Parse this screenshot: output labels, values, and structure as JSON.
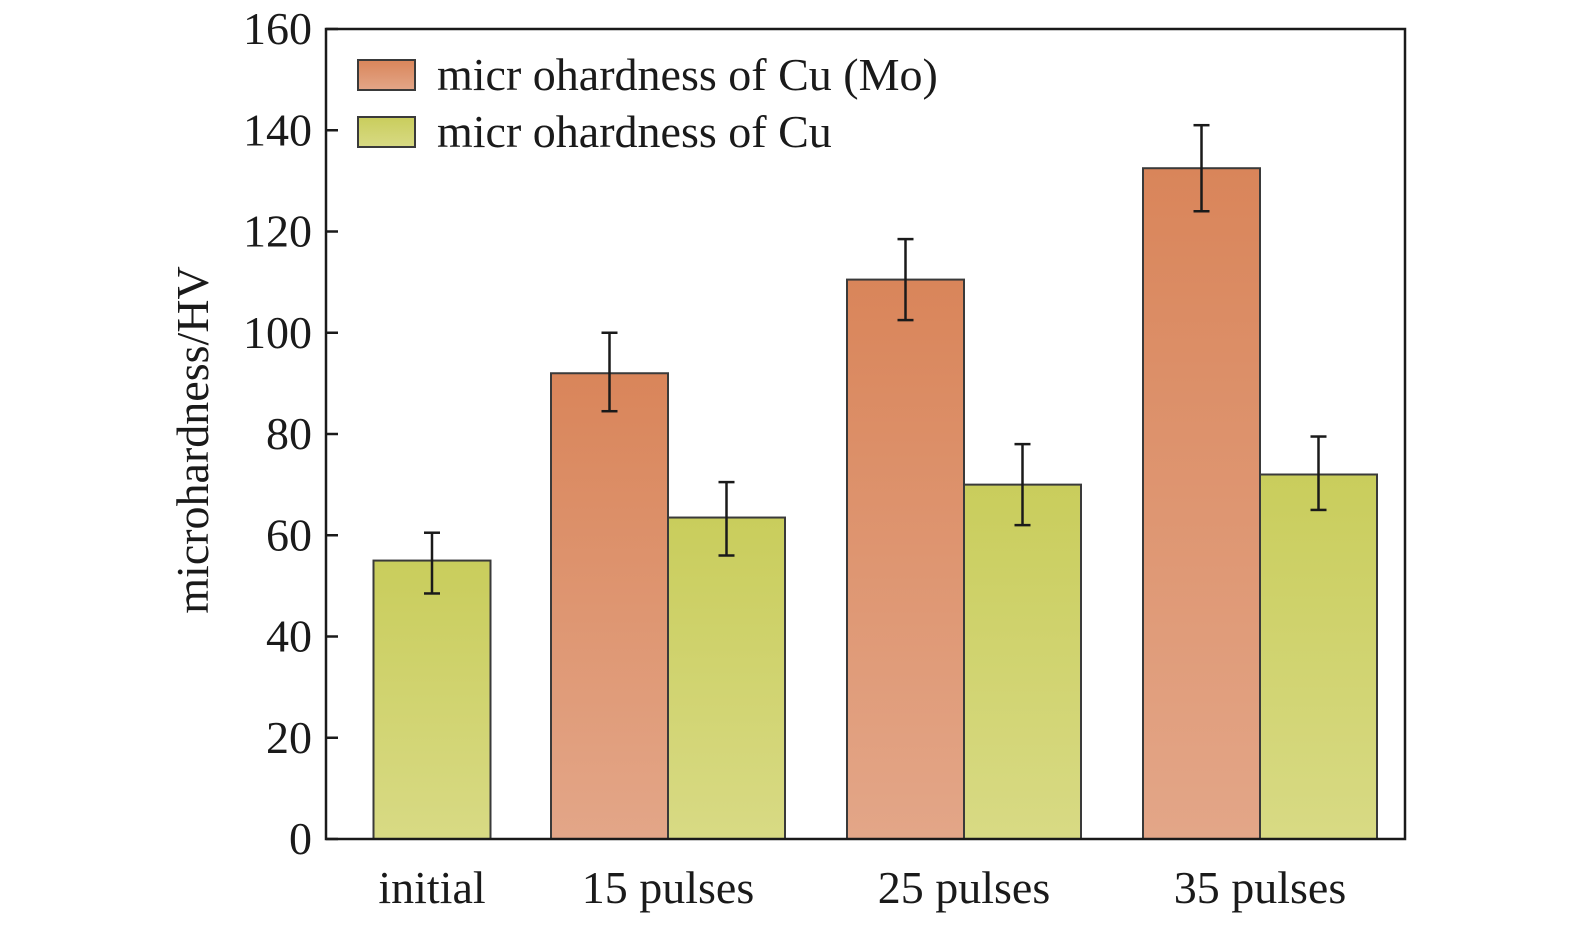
{
  "chart_data": {
    "type": "bar",
    "title": "",
    "xlabel": "",
    "ylabel": "microhardness/HV",
    "ylim": [
      0,
      160
    ],
    "yticks": [
      0,
      20,
      40,
      60,
      80,
      100,
      120,
      140,
      160
    ],
    "grid": false,
    "legend_position": "top-left",
    "categories": [
      "initial",
      "15 pulses",
      "25 pulses",
      "35 pulses"
    ],
    "series": [
      {
        "name": "micr ohardness of Cu (Mo)",
        "color": "#d98a5e",
        "values": [
          null,
          92,
          110.5,
          132.5
        ],
        "error_low": [
          null,
          84.5,
          102.5,
          124
        ],
        "error_high": [
          null,
          100,
          118.5,
          141
        ]
      },
      {
        "name": "micr ohardness of Cu",
        "color": "#cdd26a",
        "values": [
          55,
          63.5,
          70,
          72
        ],
        "error_low": [
          48.5,
          56,
          62,
          65
        ],
        "error_high": [
          60.5,
          70.5,
          78,
          79.5
        ]
      }
    ]
  }
}
